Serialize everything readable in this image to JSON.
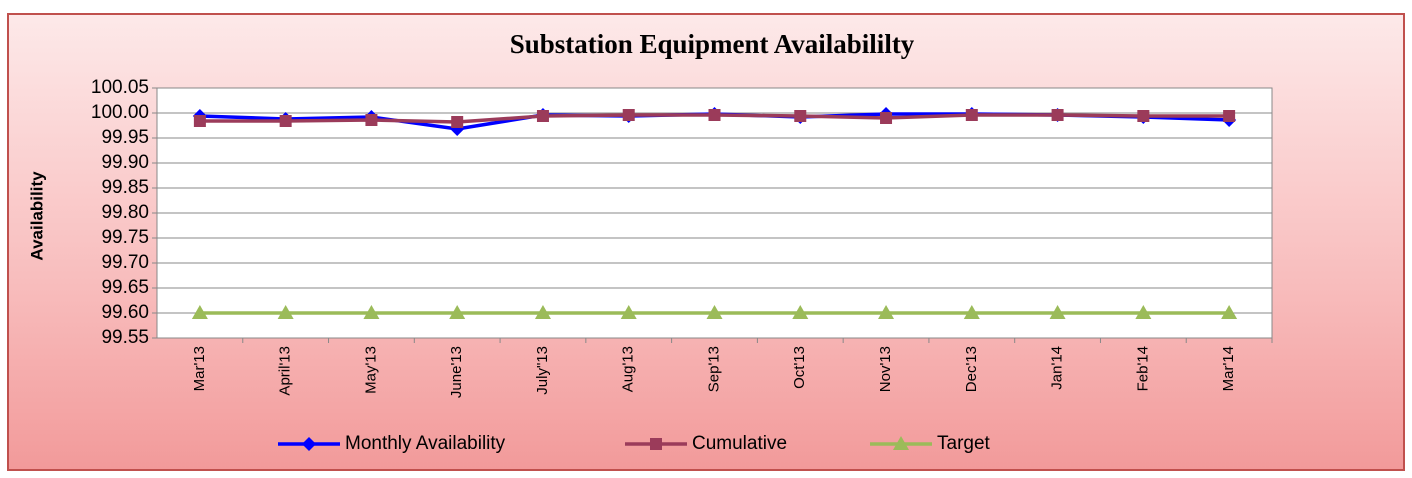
{
  "chart_data": {
    "type": "line",
    "title": "Substation Equipment Availabililty",
    "y_label": "Availability",
    "categories": [
      "Mar'13",
      "April'13",
      "May'13",
      "June'13",
      "July\"13",
      "Aug'13",
      "Sep'13",
      "Oct'13",
      "Nov'13",
      "Dec'13",
      "Jan'14",
      "Feb'14",
      "Mar'14"
    ],
    "series": [
      {
        "name": "Monthly Availability",
        "color": "#0000ff",
        "marker": "diamond",
        "values": [
          99.994,
          99.988,
          99.992,
          99.968,
          99.996,
          99.994,
          99.998,
          99.992,
          99.998,
          99.998,
          99.996,
          99.992,
          99.986
        ]
      },
      {
        "name": "Cumulative",
        "color": "#9b3b5a",
        "marker": "square",
        "values": [
          99.984,
          99.984,
          99.986,
          99.982,
          99.994,
          99.996,
          99.996,
          99.994,
          99.99,
          99.996,
          99.996,
          99.994,
          99.994
        ]
      },
      {
        "name": "Target",
        "color": "#9bbb59",
        "marker": "triangle",
        "values": [
          99.6,
          99.6,
          99.6,
          99.6,
          99.6,
          99.6,
          99.6,
          99.6,
          99.6,
          99.6,
          99.6,
          99.6,
          99.6
        ]
      }
    ],
    "ylim": [
      99.55,
      100.05
    ],
    "yticks": [
      99.55,
      {
        "value": 99.6,
        "label": "99.60"
      },
      99.65,
      {
        "value": 99.7,
        "label": "99.70"
      },
      99.75,
      {
        "value": 99.8,
        "label": "99.80"
      },
      99.85,
      {
        "value": 99.9,
        "label": "99.90"
      },
      99.95,
      {
        "value": 100,
        "label": "100.00"
      },
      100.05
    ],
    "grid": true,
    "legend": "bottom"
  }
}
